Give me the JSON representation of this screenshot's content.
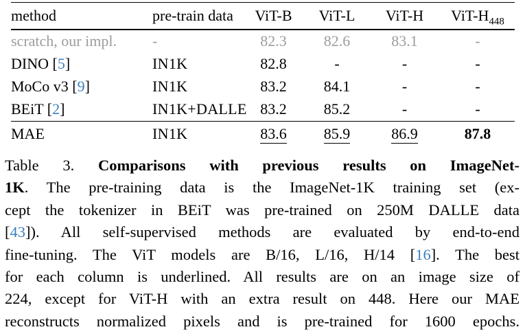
{
  "colors": {
    "citation_blue": "#3d7ebf",
    "gray_row_text": "#9c9c9c",
    "text": "#000000"
  },
  "table": {
    "headers": [
      {
        "id": "method",
        "text": "method"
      },
      {
        "id": "pretrain",
        "text": "pre-train data"
      },
      {
        "id": "vitb",
        "text": "ViT-B"
      },
      {
        "id": "vitl",
        "text": "ViT-L"
      },
      {
        "id": "vith",
        "text": "ViT-H"
      },
      {
        "id": "vith448",
        "text": "ViT-H",
        "sub": "448"
      }
    ],
    "rows": [
      {
        "id": "scratch",
        "gray": true,
        "method": [
          {
            "t": "scratch, our impl."
          }
        ],
        "pretrain": "-",
        "values": [
          {
            "t": "82.3"
          },
          {
            "t": "82.6"
          },
          {
            "t": "83.1"
          },
          {
            "t": "-"
          }
        ]
      },
      {
        "id": "dino",
        "method": [
          {
            "t": "DINO ["
          },
          {
            "t": "5",
            "cite": true
          },
          {
            "t": "]"
          }
        ],
        "pretrain": "IN1K",
        "values": [
          {
            "t": "82.8"
          },
          {
            "t": "-"
          },
          {
            "t": "-"
          },
          {
            "t": "-"
          }
        ]
      },
      {
        "id": "moco-v3",
        "method": [
          {
            "t": "MoCo v3 ["
          },
          {
            "t": "9",
            "cite": true
          },
          {
            "t": "]"
          }
        ],
        "pretrain": "IN1K",
        "values": [
          {
            "t": "83.2"
          },
          {
            "t": "84.1"
          },
          {
            "t": "-"
          },
          {
            "t": "-"
          }
        ]
      },
      {
        "id": "beit",
        "method": [
          {
            "t": "BEiT ["
          },
          {
            "t": "2",
            "cite": true
          },
          {
            "t": "]"
          }
        ],
        "pretrain": "IN1K+DALLE",
        "values": [
          {
            "t": "83.2"
          },
          {
            "t": "85.2"
          },
          {
            "t": "-"
          },
          {
            "t": "-"
          }
        ]
      },
      {
        "id": "mae",
        "topline": true,
        "method": [
          {
            "t": "MAE"
          }
        ],
        "pretrain": "IN1K",
        "values": [
          {
            "t": "83.6",
            "u": true
          },
          {
            "t": "85.9",
            "u": true
          },
          {
            "t": "86.9",
            "u": true
          },
          {
            "t": "87.8",
            "b": true
          }
        ]
      }
    ]
  },
  "caption": {
    "lines": [
      [
        {
          "t": "Table 3. "
        },
        {
          "t": "Comparisons with previous results on ImageNet-",
          "bold": true
        }
      ],
      [
        {
          "t": "1K",
          "bold": true
        },
        {
          "t": ". The pre-training data is the ImageNet-1K training set (ex-"
        }
      ],
      [
        {
          "t": "cept the tokenizer in BEiT was pre-trained on 250M DALLE data"
        }
      ],
      [
        {
          "t": "["
        },
        {
          "t": "43",
          "cite": true
        },
        {
          "t": "]). All self-supervised methods are evaluated by end-to-end"
        }
      ],
      [
        {
          "t": "fine-tuning. The ViT models are B/16, L/16, H/14 ["
        },
        {
          "t": "16",
          "cite": true
        },
        {
          "t": "]. The best"
        }
      ],
      [
        {
          "t": "for each column is underlined. All results are on an image size of"
        }
      ],
      [
        {
          "t": "224, except for ViT-H with an extra result on 448. Here our MAE"
        }
      ],
      [
        {
          "t": "reconstructs normalized pixels and is pre-trained for 1600 epochs."
        }
      ]
    ]
  }
}
